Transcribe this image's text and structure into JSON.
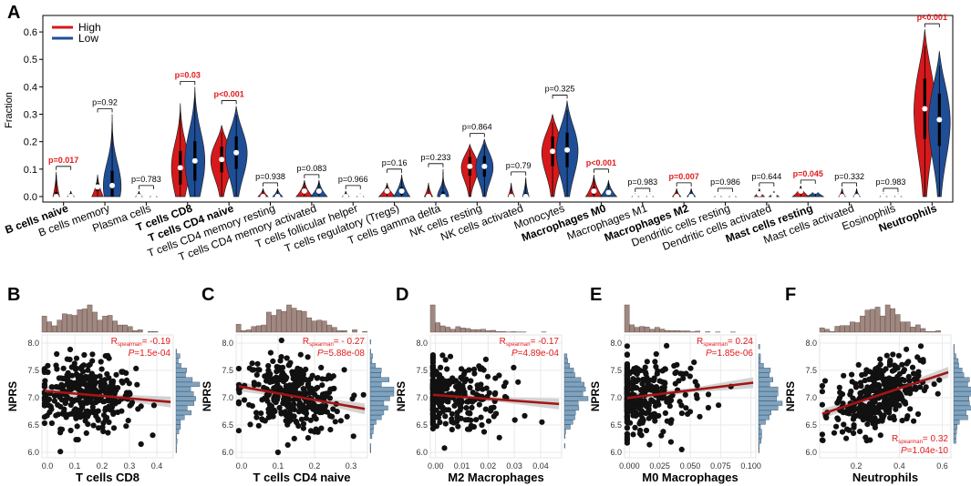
{
  "panel_letters": [
    "A",
    "B",
    "C",
    "D",
    "E",
    "F"
  ],
  "colors": {
    "high": "#d7191c",
    "low": "#1f4e96",
    "sig_text": "#e31a1c",
    "hist_fill": "#a08880",
    "hist_right_fill": "#7fa3bf",
    "reg_line": "#a31515",
    "band": "#c8c8c8"
  },
  "chart_data": [
    {
      "type": "violin",
      "title": "",
      "ylabel": "Fraction",
      "ylim": [
        -0.02,
        0.66
      ],
      "yticks": [
        "0.0",
        "0.1",
        "0.2",
        "0.3",
        "0.4",
        "0.5",
        "0.6"
      ],
      "legend": {
        "position": "top-left",
        "entries": [
          "High",
          "Low"
        ]
      },
      "categories": [
        "B cells naive",
        "B cells memory",
        "Plasma cells",
        "T cells CD8",
        "T cells CD4 naive",
        "T cells CD4 memory resting",
        "T cells CD4 memory activated",
        "T cells follicular helper",
        "T cells regulatory (Tregs)",
        "T cells gamma delta",
        "NK cells resting",
        "NK cells activated",
        "Monocytes",
        "Macrophages M0",
        "Macrophages M1",
        "Macrophages M2",
        "Dendritic cells resting",
        "Dendritic cells activated",
        "Mast cells resting",
        "Mast cells activated",
        "Eosinophils",
        "Neutrophils"
      ],
      "bold_categories": [
        true,
        false,
        false,
        true,
        true,
        false,
        false,
        false,
        false,
        false,
        false,
        false,
        false,
        true,
        false,
        true,
        false,
        false,
        true,
        false,
        false,
        true
      ],
      "pvalues": [
        "p=0.017",
        "p=0.92",
        "p=0.783",
        "p=0.03",
        "p<0.001",
        "p=0.938",
        "p=0.083",
        "p=0.966",
        "p=0.16",
        "p=0.233",
        "p=0.864",
        "p=0.79",
        "p=0.325",
        "p<0.001",
        "p=0.983",
        "p=0.007",
        "p=0.986",
        "p=0.644",
        "p=0.045",
        "p=0.332",
        "p=0.983",
        "p<0.001"
      ],
      "significant": [
        true,
        false,
        false,
        true,
        true,
        false,
        false,
        false,
        false,
        false,
        false,
        false,
        false,
        true,
        false,
        true,
        false,
        false,
        true,
        false,
        false,
        true
      ],
      "series": [
        {
          "name": "High",
          "max": [
            0.09,
            0.08,
            0.02,
            0.34,
            0.26,
            0.03,
            0.06,
            0.02,
            0.05,
            0.05,
            0.19,
            0.05,
            0.3,
            0.08,
            0.01,
            0.03,
            0.01,
            0.03,
            0.04,
            0.03,
            0.01,
            0.61
          ],
          "median": [
            0.0,
            0.035,
            0.0,
            0.105,
            0.135,
            0.0,
            0.02,
            0.0,
            0.02,
            0.0,
            0.11,
            0.0,
            0.165,
            0.02,
            0.0,
            0.0,
            0.0,
            0.01,
            0.02,
            0.0,
            0.0,
            0.32
          ],
          "width": [
            0.4,
            0.7,
            0.4,
            0.8,
            1.0,
            0.6,
            1.0,
            0.4,
            1.0,
            0.5,
            0.8,
            0.4,
            1.0,
            1.0,
            0.4,
            0.5,
            0.4,
            0.6,
            1.0,
            0.4,
            0.4,
            1.0
          ]
        },
        {
          "name": "Low",
          "max": [
            0.02,
            0.3,
            0.01,
            0.4,
            0.33,
            0.03,
            0.06,
            0.01,
            0.08,
            0.1,
            0.21,
            0.07,
            0.35,
            0.06,
            0.01,
            0.03,
            0.01,
            0.02,
            0.03,
            0.03,
            0.01,
            0.53
          ],
          "median": [
            0.0,
            0.04,
            0.0,
            0.13,
            0.16,
            0.0,
            0.02,
            0.0,
            0.02,
            0.0,
            0.11,
            0.0,
            0.17,
            0.015,
            0.0,
            0.0,
            0.0,
            0.005,
            0.02,
            0.0,
            0.0,
            0.28
          ],
          "width": [
            0.4,
            0.8,
            0.4,
            0.9,
            1.0,
            0.6,
            1.0,
            0.4,
            1.0,
            0.5,
            0.8,
            0.4,
            1.0,
            1.0,
            0.4,
            0.5,
            0.4,
            0.6,
            1.0,
            0.4,
            0.4,
            1.0
          ]
        }
      ]
    },
    {
      "type": "scatter",
      "panel": "B",
      "xlabel": "T cells CD8",
      "ylabel": "NPRS",
      "xlim": [
        -0.02,
        0.46
      ],
      "ylim": [
        5.9,
        8.15
      ],
      "xticks": [
        "0.0",
        "0.1",
        "0.2",
        "0.3",
        "0.4"
      ],
      "xtick_values": [
        0,
        0.1,
        0.2,
        0.3,
        0.4
      ],
      "yticks": [
        "6.0",
        "6.5",
        "7.0",
        "7.5",
        "8.0"
      ],
      "r_label": "R",
      "r_sub": "spearman",
      "r_text": "= -0.19",
      "p_label": "P",
      "p_text": "=1.5e-04",
      "stats_position": "top-right",
      "x_dist": "normal",
      "x_center": 0.14,
      "x_spread": 0.09,
      "n_points": 340,
      "slope": -0.44,
      "intercept": 7.12
    },
    {
      "type": "scatter",
      "panel": "C",
      "xlabel": "T cells CD4 naive",
      "ylabel": "NPRS",
      "xlim": [
        -0.015,
        0.345
      ],
      "ylim": [
        5.9,
        8.15
      ],
      "xticks": [
        "0.0",
        "0.1",
        "0.2",
        "0.3"
      ],
      "xtick_values": [
        0,
        0.1,
        0.2,
        0.3
      ],
      "yticks": [
        "6.0",
        "6.5",
        "7.0",
        "7.5",
        "8.0"
      ],
      "r_label": "R",
      "r_sub": "spearman",
      "r_text": "= - 0.27",
      "p_label": "P",
      "p_text": "=5.88e-08",
      "stats_position": "top-right",
      "x_dist": "normal",
      "x_center": 0.14,
      "x_spread": 0.07,
      "n_points": 340,
      "slope": -1.2,
      "intercept": 7.2
    },
    {
      "type": "scatter",
      "panel": "D",
      "xlabel": "M2 Macrophages",
      "ylabel": "NPRS",
      "xlim": [
        -0.002,
        0.048
      ],
      "ylim": [
        5.9,
        8.15
      ],
      "xticks": [
        "0.00",
        "0.01",
        "0.02",
        "0.03",
        "0.04"
      ],
      "xtick_values": [
        0,
        0.01,
        0.02,
        0.03,
        0.04
      ],
      "yticks": [
        "6.0",
        "6.5",
        "7.0",
        "7.5",
        "8.0"
      ],
      "r_label": "R",
      "r_sub": "spearman",
      "r_text": "= -0.17",
      "p_label": "P",
      "p_text": "=4.89e-04",
      "stats_position": "top-right",
      "x_dist": "zero_inflated",
      "x_center": 0.012,
      "x_spread": 0.012,
      "n_points": 300,
      "slope": -3.5,
      "intercept": 7.05
    },
    {
      "type": "scatter",
      "panel": "E",
      "xlabel": "M0 Macrophages",
      "ylabel": "NPRS",
      "xlim": [
        -0.004,
        0.104
      ],
      "ylim": [
        5.9,
        8.15
      ],
      "xticks": [
        "0.000",
        "0.025",
        "0.050",
        "0.075",
        "0.100"
      ],
      "xtick_values": [
        0,
        0.025,
        0.05,
        0.075,
        0.1
      ],
      "yticks": [
        "6.0",
        "6.5",
        "7.0",
        "7.5",
        "8.0"
      ],
      "r_label": "R",
      "r_sub": "spearman",
      "r_text": "= 0.24",
      "p_label": "P",
      "p_text": "=1.85e-06",
      "stats_position": "top-right",
      "x_dist": "zero_inflated",
      "x_center": 0.025,
      "x_spread": 0.025,
      "n_points": 320,
      "slope": 2.7,
      "intercept": 7.0
    },
    {
      "type": "scatter",
      "panel": "F",
      "xlabel": "Neutrophils",
      "ylabel": "NPRS",
      "xlim": [
        0.03,
        0.64
      ],
      "ylim": [
        5.9,
        8.15
      ],
      "xticks": [
        "0.2",
        "0.4",
        "0.6"
      ],
      "xtick_values": [
        0.2,
        0.4,
        0.6
      ],
      "yticks": [
        "6.0",
        "6.5",
        "7.0",
        "7.5",
        "8.0"
      ],
      "r_label": "R",
      "r_sub": "spearman",
      "r_text": "= 0.32",
      "p_label": "P",
      "p_text": "=1.04e-10",
      "stats_position": "bottom-right",
      "x_dist": "normal",
      "x_center": 0.3,
      "x_spread": 0.1,
      "n_points": 350,
      "slope": 1.3,
      "intercept": 6.65
    }
  ]
}
